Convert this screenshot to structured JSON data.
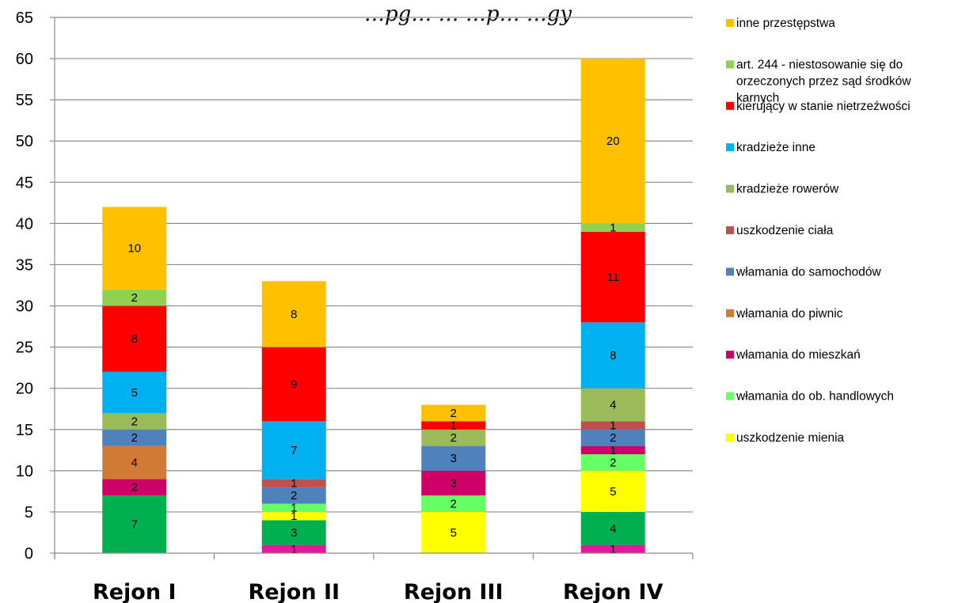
{
  "chart_data": {
    "type": "bar",
    "stacked": true,
    "title": "…pg… … …p… …gy",
    "categories": [
      "Rejon I",
      "Rejon II",
      "Rejon III",
      "Rejon IV"
    ],
    "ylim": [
      0,
      65
    ],
    "yticks": [
      0,
      5,
      10,
      15,
      20,
      25,
      30,
      35,
      40,
      45,
      50,
      55,
      60,
      65
    ],
    "grid": true,
    "legend_position": "right",
    "series": [
      {
        "name": "uszkodzenie ciała",
        "color": "#E8179A",
        "values": [
          0,
          1,
          0,
          1
        ],
        "labels": [
          "",
          "1",
          "",
          "1"
        ]
      },
      {
        "name": "",
        "color": "#00B050",
        "values": [
          7,
          3,
          0,
          4
        ],
        "labels": [
          "7",
          "3",
          "",
          "4"
        ]
      },
      {
        "name": "uszkodzenie mienia",
        "color": "#FFFF00",
        "values": [
          0,
          1,
          5,
          5
        ],
        "labels": [
          "",
          "1",
          "5",
          "5"
        ]
      },
      {
        "name": "włamania do ob. handlowych",
        "color": "#66FF66",
        "values": [
          0,
          1,
          2,
          2
        ],
        "labels": [
          "",
          "1",
          "2",
          "2"
        ]
      },
      {
        "name": "włamania do mieszkań",
        "color": "#CC0066",
        "values": [
          2,
          0,
          3,
          1
        ],
        "labels": [
          "2",
          "",
          "3",
          "1"
        ]
      },
      {
        "name": "włamania do piwnic",
        "color": "#D07A35",
        "values": [
          4,
          0,
          0,
          0
        ],
        "labels": [
          "4",
          "",
          "",
          ""
        ]
      },
      {
        "name": "włamania do samochodów",
        "color": "#4F81BD",
        "values": [
          2,
          2,
          3,
          2
        ],
        "labels": [
          "2",
          "2",
          "3",
          "2"
        ]
      },
      {
        "name": "uszkodzenie ciała",
        "color": "#C0504D",
        "values": [
          0,
          1,
          0,
          1
        ],
        "labels": [
          "",
          "1",
          "",
          "1"
        ]
      },
      {
        "name": "kradzieże rowerów",
        "color": "#9BBB59",
        "values": [
          2,
          0,
          2,
          4
        ],
        "labels": [
          "2",
          "",
          "2",
          "4"
        ]
      },
      {
        "name": "kradzieże inne",
        "color": "#00B0F0",
        "values": [
          5,
          7,
          0,
          8
        ],
        "labels": [
          "5",
          "7",
          "",
          "8"
        ]
      },
      {
        "name": "kierujący w stanie nietrzeźwości",
        "color": "#FF0000",
        "values": [
          8,
          9,
          1,
          11
        ],
        "labels": [
          "8",
          "9",
          "1",
          "11"
        ]
      },
      {
        "name": "art. 244 - niestosowanie się do orzeczonych przez sąd środków karnych",
        "color": "#92D050",
        "values": [
          2,
          0,
          0,
          1
        ],
        "labels": [
          "2",
          "",
          "",
          "1"
        ]
      },
      {
        "name": "inne przestępstwa",
        "color": "#FFC000",
        "values": [
          10,
          8,
          2,
          20
        ],
        "labels": [
          "10",
          "8",
          "2",
          "20"
        ]
      }
    ],
    "legend": [
      {
        "label_lines": [
          "inne przestępstwa"
        ],
        "color": "#FFC000"
      },
      {
        "label_lines": [
          "art. 244 - niestosowanie się do",
          "orzeczonych przez sąd środków",
          "karnych"
        ],
        "color": "#92D050"
      },
      {
        "label_lines": [
          "kierujący w stanie nietrzeźwości"
        ],
        "color": "#FF0000"
      },
      {
        "label_lines": [
          "kradzieże inne"
        ],
        "color": "#00B0F0"
      },
      {
        "label_lines": [
          "kradzieże rowerów"
        ],
        "color": "#9BBB59"
      },
      {
        "label_lines": [
          "uszkodzenie ciała"
        ],
        "color": "#C0504D"
      },
      {
        "label_lines": [
          "włamania do samochodów"
        ],
        "color": "#4F81BD"
      },
      {
        "label_lines": [
          "włamania do piwnic"
        ],
        "color": "#D07A35"
      },
      {
        "label_lines": [
          "włamania do mieszkań"
        ],
        "color": "#CC0066"
      },
      {
        "label_lines": [
          "włamania do ob. handlowych"
        ],
        "color": "#66FF66"
      },
      {
        "label_lines": [
          "uszkodzenie mienia"
        ],
        "color": "#FFFF00"
      }
    ]
  }
}
